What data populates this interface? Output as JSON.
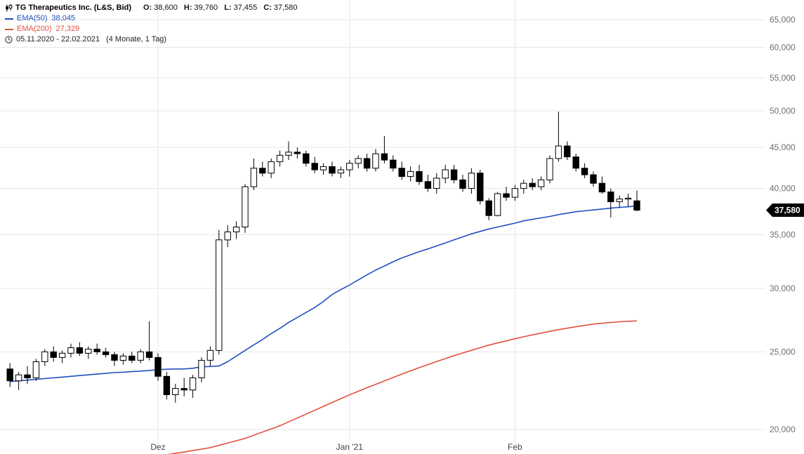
{
  "header": {
    "instrument": "TG Therapeutics Inc. (L&S, Bid)",
    "ohlc": {
      "o_label": "O:",
      "o": "38,600",
      "h_label": "H:",
      "h": "39,760",
      "l_label": "L:",
      "l": "37,455",
      "c_label": "C:",
      "c": "37,580"
    },
    "indicators": [
      {
        "label": "EMA(50)",
        "value": "38,045"
      },
      {
        "label": "EMA(200)",
        "value": "27,329"
      }
    ],
    "range": {
      "dates": "05.11.2020 - 22.02.2021",
      "detail": "(4 Monate, 1 Tag)"
    }
  },
  "last_price": "37,580",
  "chart_data": {
    "type": "candlestick",
    "scale": "log",
    "title": "TG Therapeutics Inc. (L&S, Bid)",
    "interval": "1 Tag",
    "start": "05.11.2020",
    "end": "22.02.2021",
    "overlays": [
      "EMA(50)",
      "EMA(200)"
    ],
    "ylim": [
      18635,
      68780
    ],
    "yticks": [
      20000,
      25000,
      30000,
      35000,
      40000,
      45000,
      50000,
      55000,
      60000,
      65000
    ],
    "x_labels": [
      {
        "index": 17,
        "label": "Dez"
      },
      {
        "index": 39,
        "label": "Jan '21"
      },
      {
        "index": 58,
        "label": "Feb"
      }
    ],
    "candles": [
      [
        23800,
        24200,
        22600,
        23000
      ],
      [
        23000,
        23600,
        22400,
        23400
      ],
      [
        23400,
        24000,
        22800,
        23200
      ],
      [
        23200,
        24500,
        23000,
        24300
      ],
      [
        24300,
        25200,
        24000,
        25000
      ],
      [
        25000,
        25400,
        24300,
        24600
      ],
      [
        24600,
        25100,
        24200,
        24900
      ],
      [
        24900,
        25600,
        24600,
        25300
      ],
      [
        25300,
        25700,
        24700,
        24900
      ],
      [
        24900,
        25400,
        24500,
        25200
      ],
      [
        25200,
        25600,
        24800,
        25000
      ],
      [
        25000,
        25300,
        24600,
        24800
      ],
      [
        24800,
        25000,
        24000,
        24400
      ],
      [
        24400,
        24900,
        24100,
        24700
      ],
      [
        24700,
        25000,
        24200,
        24400
      ],
      [
        24400,
        25200,
        24200,
        25000
      ],
      [
        25000,
        27300,
        24400,
        24600
      ],
      [
        24600,
        24900,
        23000,
        23300
      ],
      [
        23300,
        23600,
        21800,
        22100
      ],
      [
        22100,
        22800,
        21600,
        22500
      ],
      [
        22500,
        23200,
        22000,
        22400
      ],
      [
        22400,
        23400,
        21900,
        23200
      ],
      [
        23200,
        24600,
        22900,
        24400
      ],
      [
        24400,
        25400,
        24000,
        25100
      ],
      [
        25100,
        35500,
        24800,
        34500
      ],
      [
        34500,
        36000,
        33800,
        35300
      ],
      [
        35300,
        36400,
        34600,
        35800
      ],
      [
        35800,
        40500,
        35200,
        40200
      ],
      [
        40200,
        43600,
        39800,
        42400
      ],
      [
        42400,
        43200,
        41400,
        41800
      ],
      [
        41800,
        43600,
        41200,
        43200
      ],
      [
        43200,
        44600,
        42600,
        44000
      ],
      [
        44000,
        45800,
        43400,
        44400
      ],
      [
        44400,
        45000,
        43600,
        44200
      ],
      [
        44200,
        44600,
        42600,
        43000
      ],
      [
        43000,
        43800,
        41800,
        42200
      ],
      [
        42200,
        43000,
        41600,
        42600
      ],
      [
        42600,
        43200,
        41400,
        41800
      ],
      [
        41800,
        42600,
        41200,
        42200
      ],
      [
        42200,
        43400,
        41400,
        43000
      ],
      [
        43000,
        44000,
        42400,
        43600
      ],
      [
        43600,
        44200,
        42000,
        42400
      ],
      [
        42400,
        44800,
        42000,
        44200
      ],
      [
        44200,
        46500,
        43000,
        43400
      ],
      [
        43400,
        44000,
        42000,
        42400
      ],
      [
        42400,
        43200,
        41000,
        41400
      ],
      [
        41400,
        42600,
        40800,
        42000
      ],
      [
        42000,
        42800,
        40400,
        40800
      ],
      [
        40800,
        41600,
        39600,
        40000
      ],
      [
        40000,
        41800,
        39400,
        41200
      ],
      [
        41200,
        42800,
        40600,
        42200
      ],
      [
        42200,
        42800,
        40600,
        41000
      ],
      [
        41000,
        41600,
        39600,
        40000
      ],
      [
        40000,
        42400,
        39400,
        41800
      ],
      [
        41800,
        42200,
        38200,
        38600
      ],
      [
        38600,
        38900,
        36500,
        37000
      ],
      [
        37000,
        39600,
        36900,
        39400
      ],
      [
        39400,
        40200,
        38600,
        39000
      ],
      [
        39000,
        40400,
        38600,
        40000
      ],
      [
        40000,
        41000,
        39400,
        40600
      ],
      [
        40600,
        41200,
        39800,
        40200
      ],
      [
        40200,
        41400,
        39800,
        41000
      ],
      [
        41000,
        44000,
        40600,
        43600
      ],
      [
        43600,
        49900,
        43200,
        45200
      ],
      [
        45200,
        45800,
        43400,
        43800
      ],
      [
        43800,
        44200,
        42000,
        42400
      ],
      [
        42400,
        43000,
        41200,
        41600
      ],
      [
        41600,
        42000,
        40200,
        40600
      ],
      [
        40600,
        41400,
        39400,
        39600
      ],
      [
        39600,
        40000,
        36800,
        38500
      ],
      [
        38500,
        39200,
        37800,
        38800
      ],
      [
        38800,
        39400,
        38000,
        38900
      ],
      [
        38600,
        39760,
        37455,
        37580
      ]
    ],
    "ema50": [
      22950,
      23000,
      23050,
      23100,
      23150,
      23200,
      23250,
      23300,
      23350,
      23400,
      23450,
      23500,
      23550,
      23580,
      23620,
      23650,
      23700,
      23750,
      23780,
      23800,
      23800,
      23850,
      23950,
      23970,
      24000,
      24300,
      24700,
      25100,
      25500,
      25900,
      26350,
      26750,
      27200,
      27600,
      28000,
      28400,
      28900,
      29480,
      29900,
      30300,
      30750,
      31200,
      31630,
      32000,
      32400,
      32750,
      33050,
      33350,
      33610,
      33900,
      34200,
      34500,
      34800,
      35100,
      35350,
      35600,
      35800,
      36000,
      36200,
      36440,
      36600,
      36750,
      36900,
      37100,
      37250,
      37410,
      37500,
      37600,
      37700,
      37800,
      37880,
      37940,
      38045
    ],
    "ema200": [
      null,
      null,
      null,
      null,
      null,
      null,
      null,
      null,
      null,
      null,
      null,
      null,
      null,
      null,
      null,
      null,
      null,
      null,
      18600,
      18670,
      18740,
      18820,
      18900,
      18980,
      19100,
      19230,
      19360,
      19490,
      19670,
      19850,
      20030,
      20210,
      20440,
      20670,
      20900,
      21130,
      21370,
      21610,
      21850,
      22090,
      22320,
      22550,
      22770,
      22990,
      23220,
      23450,
      23670,
      23890,
      24100,
      24310,
      24520,
      24730,
      24920,
      25110,
      25300,
      25490,
      25650,
      25800,
      25960,
      26110,
      26250,
      26380,
      26520,
      26650,
      26760,
      26870,
      26980,
      27080,
      27140,
      27200,
      27260,
      27300,
      27329
    ],
    "colors": {
      "ema50": "#2050c0",
      "ema200": "#e2503c",
      "up": "#ffffff",
      "down": "#000000",
      "wick": "#000000",
      "grid": "#e7e7e7",
      "axis_text": "#6e6e6e",
      "x_label_text": "#444444",
      "tag_bg": "#000000",
      "tag_text": "#ffffff"
    }
  }
}
